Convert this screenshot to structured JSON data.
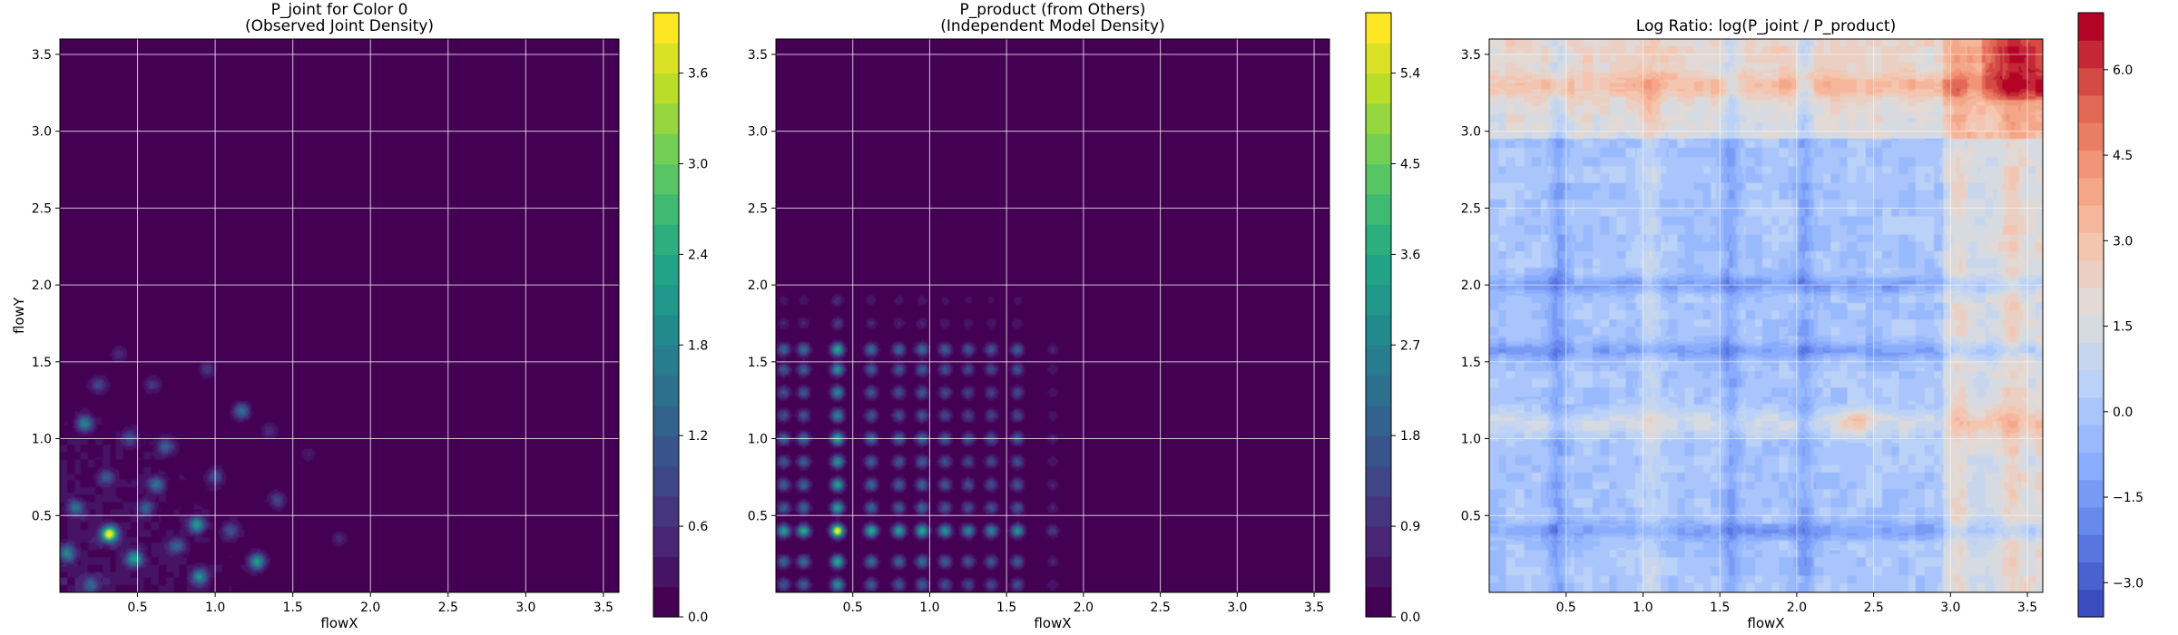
{
  "chart_data": [
    {
      "type": "heatmap",
      "title_line1": "P_joint for Color 0",
      "title_line2": "(Observed Joint Density)",
      "xlabel": "flowX",
      "ylabel": "flowY",
      "xlim": [
        0,
        3.6
      ],
      "ylim": [
        0,
        3.6
      ],
      "xticks": [
        "0.5",
        "1.0",
        "1.5",
        "2.0",
        "2.5",
        "3.0",
        "3.5"
      ],
      "yticks": [
        "0.5",
        "1.0",
        "1.5",
        "2.0",
        "2.5",
        "3.0",
        "3.5"
      ],
      "grid": true,
      "colormap": "viridis",
      "colorbar": {
        "min": 0.0,
        "max": 4.0,
        "ticks": [
          "0.0",
          "0.6",
          "1.2",
          "1.8",
          "2.4",
          "3.0",
          "3.6"
        ]
      },
      "hotspots": [
        {
          "x": 0.32,
          "y": 0.38,
          "v": 3.9
        },
        {
          "x": 0.05,
          "y": 0.25,
          "v": 1.6
        },
        {
          "x": 0.48,
          "y": 0.22,
          "v": 2.2
        },
        {
          "x": 0.88,
          "y": 0.44,
          "v": 2.0
        },
        {
          "x": 1.27,
          "y": 0.2,
          "v": 2.1
        },
        {
          "x": 0.9,
          "y": 0.1,
          "v": 1.8
        },
        {
          "x": 0.16,
          "y": 1.1,
          "v": 1.7
        },
        {
          "x": 0.62,
          "y": 0.7,
          "v": 1.4
        },
        {
          "x": 0.68,
          "y": 0.95,
          "v": 1.2
        },
        {
          "x": 1.17,
          "y": 1.18,
          "v": 1.5
        },
        {
          "x": 0.1,
          "y": 0.55,
          "v": 1.3
        },
        {
          "x": 0.55,
          "y": 0.55,
          "v": 1.1
        },
        {
          "x": 0.3,
          "y": 0.75,
          "v": 1.0
        },
        {
          "x": 1.0,
          "y": 0.75,
          "v": 0.9
        },
        {
          "x": 0.75,
          "y": 0.3,
          "v": 1.2
        },
        {
          "x": 1.1,
          "y": 0.4,
          "v": 1.0
        },
        {
          "x": 0.25,
          "y": 1.35,
          "v": 0.8
        },
        {
          "x": 0.45,
          "y": 1.0,
          "v": 0.9
        },
        {
          "x": 0.95,
          "y": 1.45,
          "v": 0.7
        },
        {
          "x": 1.4,
          "y": 0.6,
          "v": 0.8
        },
        {
          "x": 0.2,
          "y": 0.05,
          "v": 1.0
        },
        {
          "x": 1.35,
          "y": 1.05,
          "v": 0.6
        },
        {
          "x": 0.6,
          "y": 1.35,
          "v": 0.6
        },
        {
          "x": 0.38,
          "y": 1.55,
          "v": 0.5
        },
        {
          "x": 1.8,
          "y": 0.35,
          "v": 0.5
        },
        {
          "x": 1.6,
          "y": 0.9,
          "v": 0.4
        }
      ]
    },
    {
      "type": "heatmap",
      "title_line1": "P_product (from Others)",
      "title_line2": "(Independent Model Density)",
      "xlabel": "flowX",
      "ylabel": "",
      "xlim": [
        0,
        3.6
      ],
      "ylim": [
        0,
        3.6
      ],
      "xticks": [
        "0.5",
        "1.0",
        "1.5",
        "2.0",
        "2.5",
        "3.0",
        "3.5"
      ],
      "yticks": [
        "0.5",
        "1.0",
        "1.5",
        "2.0",
        "2.5",
        "3.0",
        "3.5"
      ],
      "grid": true,
      "colormap": "viridis",
      "colorbar": {
        "min": 0.0,
        "max": 6.0,
        "ticks": [
          "0.0",
          "0.9",
          "1.8",
          "2.7",
          "3.6",
          "4.5",
          "5.4"
        ]
      },
      "x_peaks": [
        0.05,
        0.18,
        0.4,
        0.62,
        0.8,
        0.95,
        1.1,
        1.25,
        1.4,
        1.57,
        1.8
      ],
      "x_weights": [
        0.55,
        0.6,
        1.0,
        0.6,
        0.55,
        0.6,
        0.5,
        0.45,
        0.45,
        0.5,
        0.2
      ],
      "y_peaks": [
        0.05,
        0.2,
        0.4,
        0.55,
        0.7,
        0.85,
        1.0,
        1.15,
        1.3,
        1.45,
        1.58,
        1.75,
        1.9
      ],
      "y_weights": [
        0.5,
        0.6,
        1.0,
        0.55,
        0.55,
        0.5,
        0.6,
        0.45,
        0.45,
        0.5,
        0.6,
        0.2,
        0.15
      ]
    },
    {
      "type": "heatmap",
      "title_line1": "Log Ratio: log(P_joint / P_product)",
      "title_line2": "",
      "xlabel": "flowX",
      "ylabel": "",
      "xlim": [
        0,
        3.6
      ],
      "ylim": [
        0,
        3.6
      ],
      "xticks": [
        "0.5",
        "1.0",
        "1.5",
        "2.0",
        "2.5",
        "3.0",
        "3.5"
      ],
      "yticks": [
        "0.5",
        "1.0",
        "1.5",
        "2.0",
        "2.5",
        "3.0",
        "3.5"
      ],
      "grid": true,
      "colormap": "coolwarm",
      "colorbar": {
        "min": -3.6,
        "max": 7.0,
        "ticks": [
          "−3.0",
          "−1.5",
          "0.0",
          "1.5",
          "3.0",
          "4.5",
          "6.0"
        ]
      },
      "blue_x_bands": [
        0.45,
        1.57,
        2.05
      ],
      "blue_y_bands": [
        1.57,
        0.4,
        2.0
      ],
      "red_x_bands": [
        1.05,
        3.05,
        3.4
      ],
      "red_y_bands": [
        3.3,
        1.1
      ],
      "warm_zone_x_start": 2.95,
      "warm_zone_y_start": 2.95,
      "top_right_max": 6.8
    }
  ]
}
